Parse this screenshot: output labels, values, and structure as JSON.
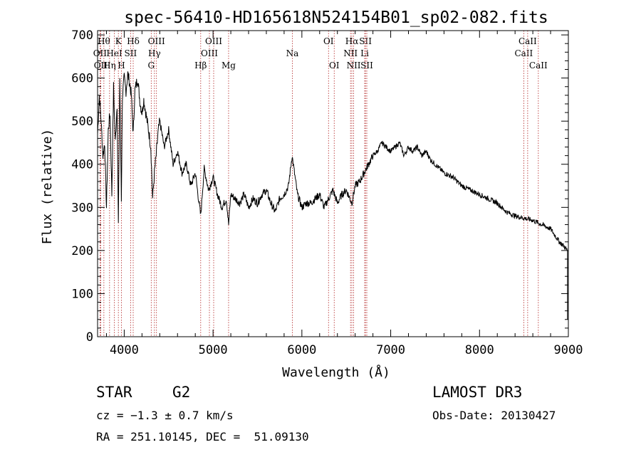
{
  "chart_data": {
    "type": "line",
    "title": "spec-56410-HD165618N524154B01_sp02-082.fits",
    "xlabel": "Wavelength (Å)",
    "ylabel": "Flux (relative)",
    "xlim": [
      3700,
      9000
    ],
    "ylim": [
      0,
      710
    ],
    "xticks": [
      4000,
      5000,
      6000,
      7000,
      8000,
      9000
    ],
    "yticks": [
      0,
      100,
      200,
      300,
      400,
      500,
      600,
      700
    ],
    "grid": false,
    "series": [
      {
        "color": "#000000",
        "x": [
          3700,
          3720,
          3740,
          3760,
          3780,
          3800,
          3820,
          3840,
          3860,
          3880,
          3900,
          3920,
          3934,
          3950,
          3968,
          3980,
          4000,
          4020,
          4040,
          4060,
          4080,
          4101,
          4120,
          4150,
          4180,
          4200,
          4220,
          4250,
          4280,
          4300,
          4320,
          4340,
          4360,
          4380,
          4400,
          4450,
          4500,
          4550,
          4600,
          4650,
          4700,
          4750,
          4800,
          4861,
          4900,
          4950,
          5000,
          5050,
          5100,
          5150,
          5175,
          5200,
          5250,
          5300,
          5350,
          5400,
          5450,
          5500,
          5550,
          5600,
          5650,
          5700,
          5750,
          5800,
          5850,
          5890,
          5950,
          6000,
          6050,
          6100,
          6150,
          6200,
          6250,
          6300,
          6350,
          6400,
          6450,
          6500,
          6563,
          6600,
          6650,
          6700,
          6750,
          6800,
          6850,
          6900,
          6950,
          7000,
          7050,
          7100,
          7150,
          7200,
          7250,
          7300,
          7350,
          7400,
          7450,
          7500,
          7600,
          7700,
          7800,
          7900,
          8000,
          8100,
          8200,
          8300,
          8400,
          8500,
          8600,
          8700,
          8800,
          8900,
          8950,
          8990
        ],
        "values": [
          470,
          560,
          500,
          420,
          450,
          300,
          480,
          520,
          330,
          580,
          450,
          540,
          260,
          600,
          320,
          560,
          600,
          570,
          610,
          590,
          560,
          470,
          570,
          600,
          540,
          520,
          550,
          510,
          470,
          440,
          320,
          380,
          420,
          470,
          500,
          440,
          480,
          400,
          430,
          380,
          400,
          350,
          380,
          280,
          390,
          340,
          370,
          330,
          300,
          320,
          260,
          330,
          320,
          310,
          330,
          300,
          320,
          310,
          330,
          340,
          310,
          290,
          320,
          330,
          350,
          420,
          330,
          300,
          310,
          310,
          320,
          330,
          300,
          320,
          340,
          310,
          330,
          340,
          310,
          350,
          360,
          380,
          400,
          420,
          430,
          450,
          440,
          430,
          440,
          450,
          420,
          440,
          430,
          440,
          420,
          430,
          410,
          400,
          380,
          370,
          350,
          340,
          330,
          320,
          310,
          290,
          280,
          275,
          270,
          260,
          250,
          220,
          210,
          200
        ]
      }
    ],
    "lines": [
      {
        "x": 3727,
        "label": "OII",
        "row": 2
      },
      {
        "x": 3735,
        "label": "OII",
        "row": 3
      },
      {
        "x": 3771,
        "label": "Hθ",
        "row": 1
      },
      {
        "x": 3835,
        "label": "Hη",
        "row": 3
      },
      {
        "x": 3889,
        "label": "HeI",
        "row": 2
      },
      {
        "x": 3934,
        "label": "K",
        "row": 1
      },
      {
        "x": 3968,
        "label": "H",
        "row": 3
      },
      {
        "x": 4072,
        "label": "SII",
        "row": 2
      },
      {
        "x": 4101,
        "label": "Hδ",
        "row": 1
      },
      {
        "x": 4304,
        "label": "G",
        "row": 3
      },
      {
        "x": 4340,
        "label": "Hγ",
        "row": 2
      },
      {
        "x": 4363,
        "label": "OIII",
        "row": 1
      },
      {
        "x": 4861,
        "label": "Hβ",
        "row": 3
      },
      {
        "x": 4959,
        "label": "OIII",
        "row": 2
      },
      {
        "x": 5007,
        "label": "OIII",
        "row": 1
      },
      {
        "x": 5175,
        "label": "Mg",
        "row": 3
      },
      {
        "x": 5893,
        "label": "Na",
        "row": 2
      },
      {
        "x": 6300,
        "label": "OI",
        "row": 1
      },
      {
        "x": 6364,
        "label": "OI",
        "row": 3
      },
      {
        "x": 6548,
        "label": "NII",
        "row": 2
      },
      {
        "x": 6563,
        "label": "Hα",
        "row": 1
      },
      {
        "x": 6583,
        "label": "NII",
        "row": 3
      },
      {
        "x": 6707,
        "label": "Li",
        "row": 2
      },
      {
        "x": 6716,
        "label": "SII",
        "row": 1
      },
      {
        "x": 6731,
        "label": "SII",
        "row": 3
      },
      {
        "x": 8498,
        "label": "CaII",
        "row": 2
      },
      {
        "x": 8542,
        "label": "CaII",
        "row": 1
      },
      {
        "x": 8662,
        "label": "CaII",
        "row": 3
      }
    ]
  },
  "footer": {
    "class": "STAR",
    "subclass": "G2",
    "survey": "LAMOST DR3",
    "cz": "cz = −1.3 ± 0.7 km/s",
    "obs_date": "Obs-Date: 20130427",
    "coords": "RA = 251.10145, DEC =  51.09130"
  }
}
